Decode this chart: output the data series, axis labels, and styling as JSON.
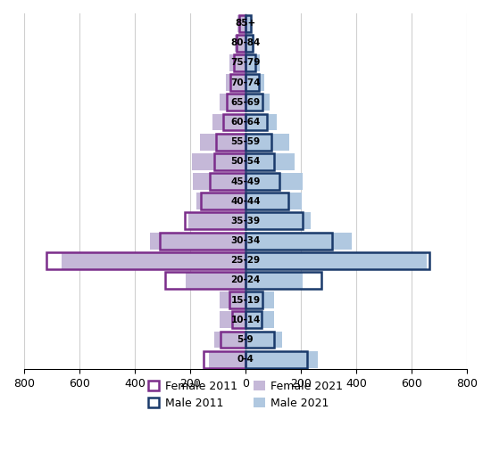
{
  "age_groups": [
    "0-4",
    "5-9",
    "10-14",
    "15-19",
    "20-24",
    "25-29",
    "30-34",
    "35-39",
    "40-44",
    "45-49",
    "50-54",
    "55-59",
    "60-64",
    "65-69",
    "70-74",
    "75-79",
    "80-84",
    "85+"
  ],
  "female_2011": [
    152,
    90,
    50,
    58,
    290,
    720,
    310,
    220,
    160,
    130,
    112,
    105,
    82,
    68,
    55,
    42,
    32,
    22
  ],
  "female_2021": [
    132,
    112,
    92,
    92,
    215,
    665,
    345,
    205,
    178,
    190,
    195,
    165,
    118,
    95,
    72,
    58,
    38,
    28
  ],
  "male_2011": [
    222,
    102,
    58,
    62,
    275,
    665,
    312,
    205,
    155,
    122,
    102,
    92,
    78,
    62,
    48,
    36,
    26,
    18
  ],
  "male_2021": [
    262,
    132,
    102,
    102,
    208,
    655,
    385,
    235,
    202,
    208,
    178,
    158,
    112,
    88,
    68,
    52,
    32,
    22
  ],
  "female_2011_color": "#7B2D8B",
  "female_2021_color": "#C5B8D8",
  "male_2011_color": "#1A3A6B",
  "male_2021_color": "#B0C8E0",
  "xlim": 800,
  "bar_height": 0.85
}
